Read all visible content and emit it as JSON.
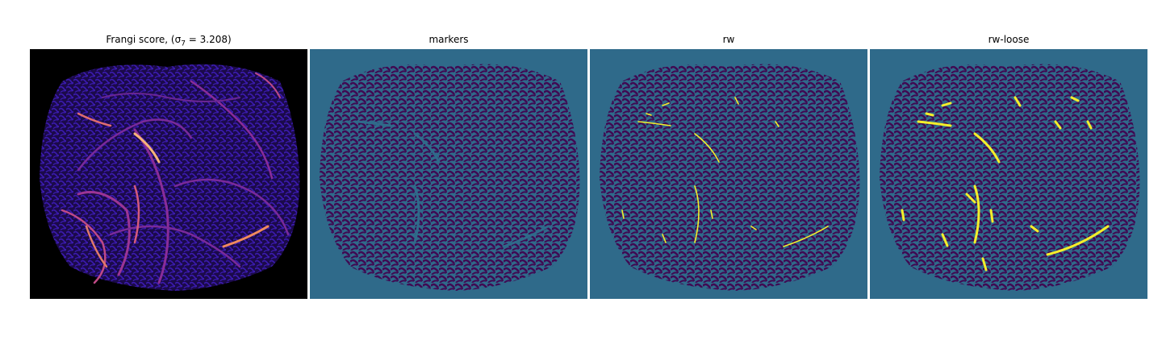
{
  "panels": [
    {
      "title": "Frangi score, (σ7 = 3.208)"
    },
    {
      "title": "markers"
    },
    {
      "title": "rw"
    },
    {
      "title": "rw-loose"
    }
  ],
  "colors": {
    "frangi_background": "#000000",
    "frangi_texture": "#2b0f8a",
    "frangi_vessel": "#9c2e98",
    "frangi_bright": "#f6b37a",
    "label_background": "#2f6a8a",
    "label_dark": "#3f0a53",
    "label_yellow": "#f4ee2a"
  }
}
